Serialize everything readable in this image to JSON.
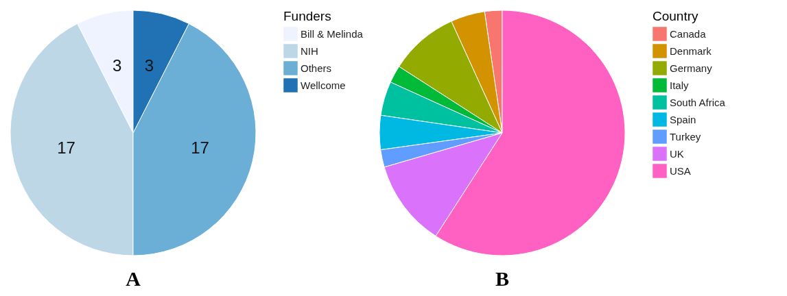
{
  "chart_data": [
    {
      "type": "pie",
      "title": "A",
      "legend_title": "Funders",
      "legend": "right",
      "data_labels": true,
      "categories": [
        "Bill & Melinda",
        "NIH",
        "Others",
        "Wellcome"
      ],
      "values": [
        3,
        17,
        17,
        3
      ],
      "colors": [
        "#eff3ff",
        "#bdd7e7",
        "#6baed6",
        "#2171b5"
      ]
    },
    {
      "type": "pie",
      "title": "B",
      "legend_title": "Country",
      "legend": "right",
      "categories": [
        "Canada",
        "Denmark",
        "Germany",
        "Italy",
        "South Africa",
        "Spain",
        "Turkey",
        "UK",
        "USA"
      ],
      "values": [
        2.3,
        4.5,
        9.1,
        2.3,
        4.5,
        4.5,
        2.3,
        11.4,
        59.1
      ],
      "colors": [
        "#f8766d",
        "#d39200",
        "#93aa00",
        "#00ba38",
        "#00c19f",
        "#00b9e3",
        "#619cff",
        "#db72fb",
        "#ff61c3"
      ]
    }
  ]
}
